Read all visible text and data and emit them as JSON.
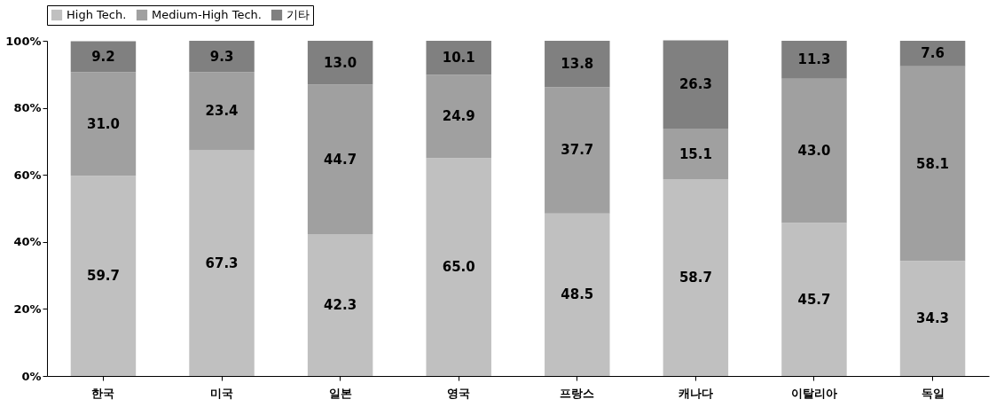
{
  "chart_data": {
    "type": "bar",
    "stacked": true,
    "categories": [
      "한국",
      "미국",
      "일본",
      "영국",
      "프랑스",
      "캐나다",
      "이탈리아",
      "독일"
    ],
    "series": [
      {
        "name": "High Tech.",
        "color": "#c0c0c0",
        "values": [
          59.7,
          67.3,
          42.3,
          65.0,
          48.5,
          58.7,
          45.7,
          34.3
        ],
        "value_labels": [
          "59.7",
          "67.3",
          "42.3",
          "65.0",
          "48.5",
          "58.7",
          "45.7",
          "34.3"
        ]
      },
      {
        "name": "Medium-High Tech.",
        "color": "#a0a0a0",
        "values": [
          31.0,
          23.4,
          44.7,
          24.9,
          37.7,
          15.1,
          43.0,
          58.1
        ],
        "value_labels": [
          "31.0",
          "23.4",
          "44.7",
          "24.9",
          "37.7",
          "15.1",
          "43.0",
          "58.1"
        ]
      },
      {
        "name": "기타",
        "color": "#808080",
        "values": [
          9.2,
          9.3,
          13.0,
          10.1,
          13.8,
          26.3,
          11.3,
          7.6
        ],
        "value_labels": [
          "9.2",
          "9.3",
          "13.0",
          "10.1",
          "13.8",
          "26.3",
          "11.3",
          "7.6"
        ]
      }
    ],
    "ylim": [
      0,
      100
    ],
    "yticks": [
      {
        "value": 0,
        "label": "0%"
      },
      {
        "value": 20,
        "label": "20%"
      },
      {
        "value": 40,
        "label": "40%"
      },
      {
        "value": 60,
        "label": "60%"
      },
      {
        "value": 80,
        "label": "80%"
      },
      {
        "value": 100,
        "label": "100%"
      }
    ],
    "legend": "top",
    "grid": false
  }
}
